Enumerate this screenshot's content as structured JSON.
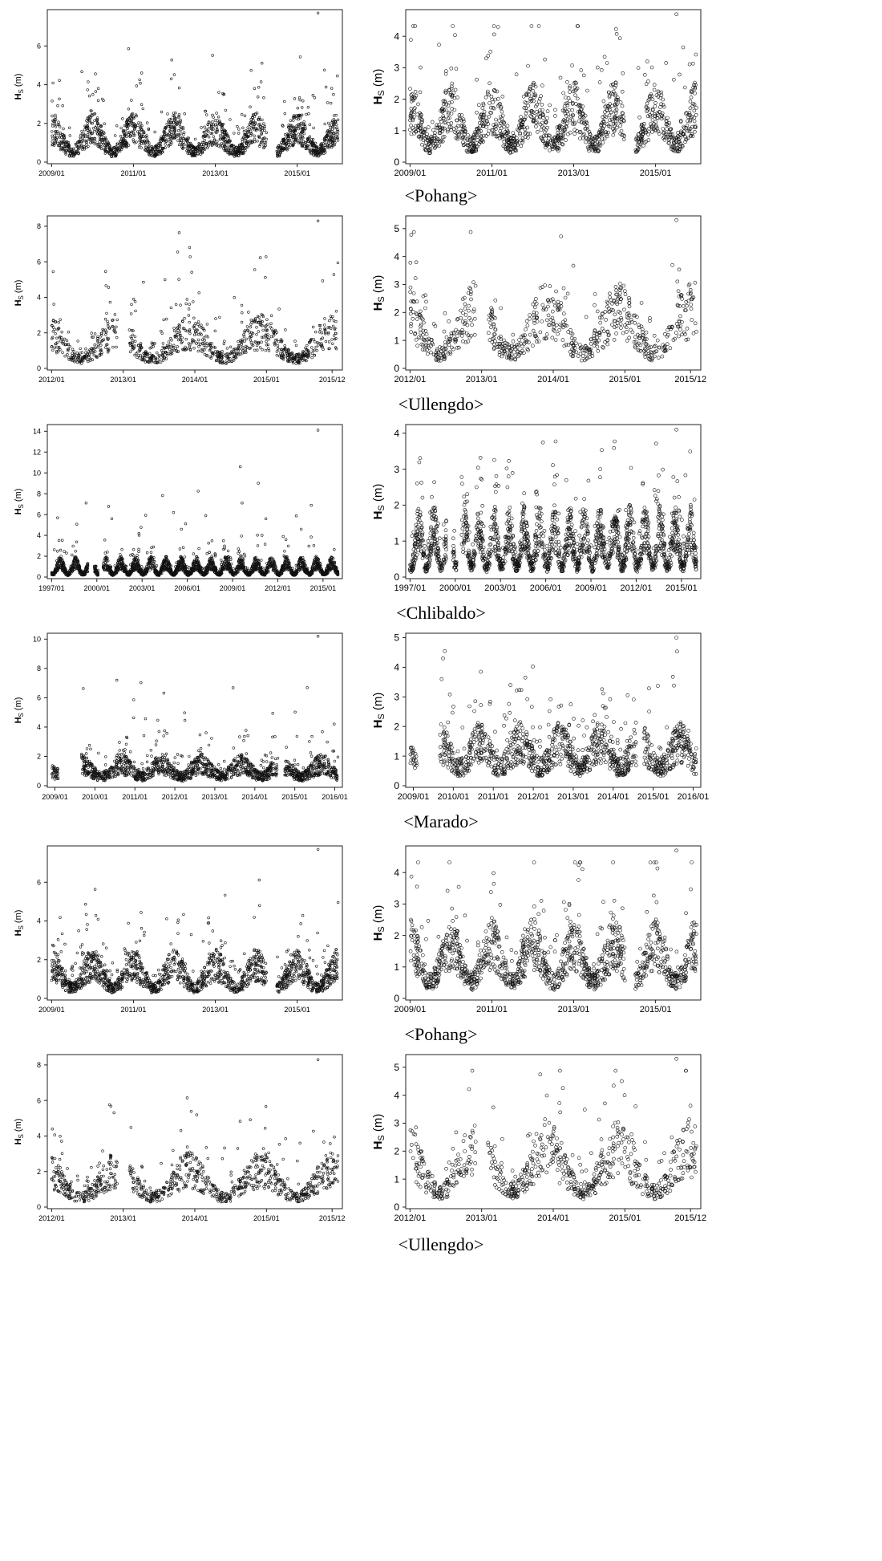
{
  "figure": {
    "rows": [
      {
        "caption": "<Pohang>"
      },
      {
        "caption": "<Ullengdo>"
      },
      {
        "caption": "<Chlibaldo>"
      },
      {
        "caption": "<Marado>"
      },
      {
        "caption": "<Pohang>"
      },
      {
        "caption": "<Ullengdo>"
      }
    ]
  },
  "chart_data": [
    {
      "type": "scatter",
      "site": "Pohang",
      "side": "left",
      "ylabel_main": "H",
      "ylabel_sub": "S",
      "ylabel_unit": " (m)",
      "x_ticks": [
        "2009/01",
        "2011/01",
        "2013/01",
        "2015/01"
      ],
      "y_ticks": [
        "0",
        "2",
        "4",
        "6"
      ],
      "xlim": [
        "2009/01",
        "2015/12"
      ],
      "ylim": [
        0,
        7.8
      ],
      "gaps": [
        [
          "2014/04",
          "2014/06"
        ]
      ],
      "series": [
        {
          "base_min": 0.6,
          "base_max": 1.9,
          "season_peak_month": 1,
          "max": 7.7
        }
      ],
      "grid": false
    },
    {
      "type": "scatter",
      "site": "Pohang",
      "side": "right",
      "ylabel_main": "H",
      "ylabel_sub": "S",
      "ylabel_unit": " (m)",
      "x_ticks": [
        "2009/01",
        "2011/01",
        "2013/01",
        "2015/01"
      ],
      "y_ticks": [
        "0",
        "1",
        "2",
        "3",
        "4"
      ],
      "xlim": [
        "2009/01",
        "2015/12"
      ],
      "ylim": [
        0,
        4.8
      ],
      "gaps": [
        [
          "2014/04",
          "2014/06"
        ]
      ],
      "series": [
        {
          "base_min": 0.6,
          "base_max": 1.9,
          "season_peak_month": 1,
          "max": 4.7
        }
      ],
      "grid": false
    },
    {
      "type": "scatter",
      "site": "Ullengdo",
      "side": "left",
      "ylabel_main": "H",
      "ylabel_sub": "S",
      "ylabel_unit": " (m)",
      "x_ticks": [
        "2012/01",
        "2013/01",
        "2014/01",
        "2015/01",
        "2015/12"
      ],
      "y_ticks": [
        "0",
        "2",
        "4",
        "6",
        "8"
      ],
      "xlim": [
        "2012/01",
        "2015/12"
      ],
      "ylim": [
        0,
        8.5
      ],
      "gaps": [
        [
          "2012/12",
          "2013/01"
        ]
      ],
      "series": [
        {
          "base_min": 0.6,
          "base_max": 2.3,
          "season_peak_month": 12,
          "max": 8.3
        }
      ],
      "grid": false
    },
    {
      "type": "scatter",
      "site": "Ullengdo",
      "side": "right",
      "ylabel_main": "H",
      "ylabel_sub": "S",
      "ylabel_unit": " (m)",
      "x_ticks": [
        "2012/01",
        "2013/01",
        "2014/01",
        "2015/01",
        "2015/12"
      ],
      "y_ticks": [
        "0",
        "1",
        "2",
        "3",
        "4",
        "5"
      ],
      "xlim": [
        "2012/01",
        "2015/12"
      ],
      "ylim": [
        0,
        5.4
      ],
      "gaps": [
        [
          "2012/12",
          "2013/01"
        ]
      ],
      "series": [
        {
          "base_min": 0.6,
          "base_max": 2.3,
          "season_peak_month": 12,
          "max": 5.3
        }
      ],
      "grid": false
    },
    {
      "type": "scatter",
      "site": "Chlibaldo",
      "side": "left",
      "ylabel_main": "H",
      "ylabel_sub": "S",
      "ylabel_unit": " (m)",
      "x_ticks": [
        "1997/01",
        "2000/01",
        "2003/01",
        "2006/01",
        "2009/01",
        "2012/01",
        "2015/01"
      ],
      "y_ticks": [
        "0",
        "2",
        "4",
        "6",
        "8",
        "10",
        "12",
        "14"
      ],
      "xlim": [
        "1997/01",
        "2015/12"
      ],
      "ylim": [
        0,
        14.5
      ],
      "gaps": [
        [
          "1999/06",
          "1999/10"
        ],
        [
          "2000/02",
          "2000/05"
        ]
      ],
      "series": [
        {
          "base_min": 0.3,
          "base_max": 1.5,
          "season_peak_month": 8,
          "max": 14.1
        }
      ],
      "grid": false
    },
    {
      "type": "scatter",
      "site": "Chlibaldo",
      "side": "right",
      "ylabel_main": "H",
      "ylabel_sub": "S",
      "ylabel_unit": " (m)",
      "x_ticks": [
        "1997/01",
        "2000/01",
        "2003/01",
        "2006/01",
        "2009/01",
        "2012/01",
        "2015/01"
      ],
      "y_ticks": [
        "0",
        "1",
        "2",
        "3",
        "4"
      ],
      "xlim": [
        "1997/01",
        "2015/12"
      ],
      "ylim": [
        0,
        4.2
      ],
      "gaps": [
        [
          "1999/06",
          "1999/10"
        ],
        [
          "2000/02",
          "2000/05"
        ]
      ],
      "series": [
        {
          "base_min": 0.3,
          "base_max": 1.5,
          "season_peak_month": 8,
          "max": 4.1
        }
      ],
      "grid": false
    },
    {
      "type": "scatter",
      "site": "Marado",
      "side": "left",
      "ylabel_main": "H",
      "ylabel_sub": "S",
      "ylabel_unit": " (m)",
      "x_ticks": [
        "2009/01",
        "2010/01",
        "2011/01",
        "2012/01",
        "2013/01",
        "2014/01",
        "2015/01",
        "2016/01"
      ],
      "y_ticks": [
        "0",
        "2",
        "4",
        "6",
        "8",
        "10"
      ],
      "xlim": [
        "2008/12",
        "2016/01"
      ],
      "ylim": [
        0,
        10.3
      ],
      "gaps": [
        [
          "2009/02",
          "2009/08"
        ],
        [
          "2014/08",
          "2014/09"
        ]
      ],
      "series": [
        {
          "base_min": 0.7,
          "base_max": 1.6,
          "season_peak_month": 9,
          "max": 10.2
        }
      ],
      "grid": false
    },
    {
      "type": "scatter",
      "site": "Marado",
      "side": "right",
      "ylabel_main": "H",
      "ylabel_sub": "S",
      "ylabel_unit": " (m)",
      "x_ticks": [
        "2009/01",
        "2010/01",
        "2011/01",
        "2012/01",
        "2013/01",
        "2014/01",
        "2015/01",
        "2016/01"
      ],
      "y_ticks": [
        "0",
        "1",
        "2",
        "3",
        "4",
        "5"
      ],
      "xlim": [
        "2008/12",
        "2016/01"
      ],
      "ylim": [
        0,
        5.1
      ],
      "gaps": [
        [
          "2009/02",
          "2009/08"
        ],
        [
          "2014/08",
          "2014/09"
        ]
      ],
      "series": [
        {
          "base_min": 0.7,
          "base_max": 1.6,
          "season_peak_month": 9,
          "max": 5.0
        }
      ],
      "grid": false
    },
    {
      "type": "scatter",
      "site": "Pohang",
      "side": "left",
      "ylabel_main": "H",
      "ylabel_sub": "S",
      "ylabel_unit": " (m)",
      "x_ticks": [
        "2009/01",
        "2011/01",
        "2013/01",
        "2015/01"
      ],
      "y_ticks": [
        "0",
        "2",
        "4",
        "6"
      ],
      "xlim": [
        "2009/01",
        "2015/12"
      ],
      "ylim": [
        0,
        7.8
      ],
      "gaps": [
        [
          "2014/04",
          "2014/06"
        ]
      ],
      "series": [
        {
          "base_min": 0.6,
          "base_max": 1.9,
          "season_peak_month": 1,
          "max": 7.7
        }
      ],
      "grid": false
    },
    {
      "type": "scatter",
      "site": "Pohang",
      "side": "right",
      "ylabel_main": "H",
      "ylabel_sub": "S",
      "ylabel_unit": " (m)",
      "x_ticks": [
        "2009/01",
        "2011/01",
        "2013/01",
        "2015/01"
      ],
      "y_ticks": [
        "0",
        "1",
        "2",
        "3",
        "4"
      ],
      "xlim": [
        "2009/01",
        "2015/12"
      ],
      "ylim": [
        0,
        4.8
      ],
      "gaps": [
        [
          "2014/04",
          "2014/06"
        ]
      ],
      "series": [
        {
          "base_min": 0.6,
          "base_max": 1.9,
          "season_peak_month": 1,
          "max": 4.7
        }
      ],
      "grid": false
    },
    {
      "type": "scatter",
      "site": "Ullengdo",
      "side": "left",
      "ylabel_main": "H",
      "ylabel_sub": "S",
      "ylabel_unit": " (m)",
      "x_ticks": [
        "2012/01",
        "2013/01",
        "2014/01",
        "2015/01",
        "2015/12"
      ],
      "y_ticks": [
        "0",
        "2",
        "4",
        "6",
        "8"
      ],
      "xlim": [
        "2012/01",
        "2015/12"
      ],
      "ylim": [
        0,
        8.5
      ],
      "gaps": [
        [
          "2012/12",
          "2013/01"
        ]
      ],
      "series": [
        {
          "base_min": 0.6,
          "base_max": 2.3,
          "season_peak_month": 12,
          "max": 8.3
        }
      ],
      "grid": false
    },
    {
      "type": "scatter",
      "site": "Ullengdo",
      "side": "right",
      "ylabel_main": "H",
      "ylabel_sub": "S",
      "ylabel_unit": " (m)",
      "x_ticks": [
        "2012/01",
        "2013/01",
        "2014/01",
        "2015/01",
        "2015/12"
      ],
      "y_ticks": [
        "0",
        "1",
        "2",
        "3",
        "4",
        "5"
      ],
      "xlim": [
        "2012/01",
        "2015/12"
      ],
      "ylim": [
        0,
        5.4
      ],
      "gaps": [
        [
          "2012/12",
          "2013/01"
        ]
      ],
      "series": [
        {
          "base_min": 0.6,
          "base_max": 2.3,
          "season_peak_month": 12,
          "max": 5.3
        }
      ],
      "grid": false
    }
  ]
}
